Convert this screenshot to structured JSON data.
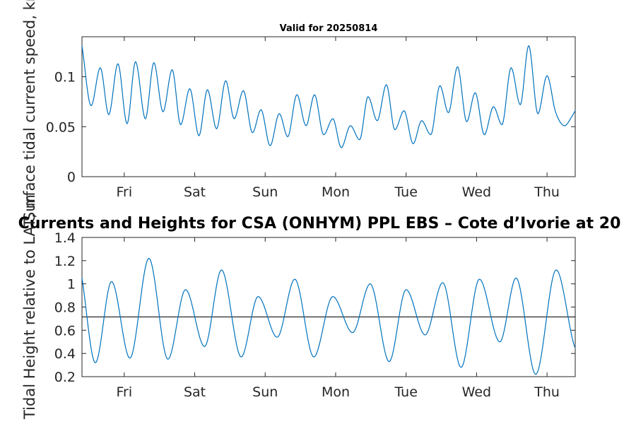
{
  "chart_data": [
    {
      "type": "line",
      "title": "Valid for 20250814",
      "ylabel": "Surface tidal current speed, kn",
      "xlim": [
        0,
        7
      ],
      "ylim": [
        0,
        0.14
      ],
      "yticks": [
        0,
        0.05,
        0.1
      ],
      "ytick_labels": [
        "0",
        "0.05",
        "0.1"
      ],
      "xticks": [
        0.6,
        1.6,
        2.6,
        3.6,
        4.6,
        5.6,
        6.6
      ],
      "xtick_labels": [
        "Fri",
        "Sat",
        "Sun",
        "Mon",
        "Tue",
        "Wed",
        "Thu"
      ],
      "grid": false,
      "color": "#0072BD",
      "x": [
        0.0,
        0.13,
        0.26,
        0.38,
        0.51,
        0.64,
        0.76,
        0.9,
        1.02,
        1.15,
        1.28,
        1.4,
        1.53,
        1.66,
        1.78,
        1.91,
        2.04,
        2.16,
        2.29,
        2.42,
        2.54,
        2.67,
        2.8,
        2.92,
        3.05,
        3.18,
        3.3,
        3.43,
        3.56,
        3.68,
        3.81,
        3.94,
        4.06,
        4.19,
        4.32,
        4.44,
        4.57,
        4.7,
        4.82,
        4.95,
        5.08,
        5.2,
        5.33,
        5.46,
        5.58,
        5.71,
        5.84,
        5.96,
        6.09,
        6.22,
        6.34,
        6.47,
        6.6,
        6.72,
        6.85,
        6.95,
        7.0
      ],
      "values": [
        0.131,
        0.071,
        0.109,
        0.062,
        0.113,
        0.053,
        0.115,
        0.058,
        0.114,
        0.065,
        0.107,
        0.052,
        0.088,
        0.041,
        0.087,
        0.048,
        0.096,
        0.058,
        0.086,
        0.044,
        0.067,
        0.031,
        0.063,
        0.04,
        0.082,
        0.051,
        0.082,
        0.042,
        0.058,
        0.029,
        0.051,
        0.037,
        0.08,
        0.056,
        0.092,
        0.047,
        0.066,
        0.033,
        0.056,
        0.042,
        0.091,
        0.064,
        0.11,
        0.055,
        0.084,
        0.042,
        0.07,
        0.052,
        0.109,
        0.072,
        0.131,
        0.063,
        0.101,
        0.065,
        0.051,
        0.06,
        0.066
      ]
    },
    {
      "type": "line",
      "title": "Currents and Heights for CSA (ONHYM) PPL EBS  – Cote d’Ivorie at 20",
      "ylabel": "Tidal Height relative to LAT, m",
      "xlim": [
        0,
        7
      ],
      "ylim": [
        0.2,
        1.4
      ],
      "yticks": [
        0.2,
        0.4,
        0.6,
        0.8,
        1.0,
        1.2,
        1.4
      ],
      "ytick_labels": [
        "0.2",
        "0.4",
        "0.6",
        "0.8",
        "1",
        "1.2",
        "1.4"
      ],
      "xticks": [
        0.6,
        1.6,
        2.6,
        3.6,
        4.6,
        5.6,
        6.6
      ],
      "xtick_labels": [
        "Fri",
        "Sat",
        "Sun",
        "Mon",
        "Tue",
        "Wed",
        "Thu"
      ],
      "grid": false,
      "color": "#0072BD",
      "mean_level": 0.715,
      "x": [
        0.0,
        0.19,
        0.42,
        0.68,
        0.95,
        1.22,
        1.47,
        1.74,
        1.98,
        2.26,
        2.5,
        2.77,
        3.02,
        3.29,
        3.56,
        3.84,
        4.09,
        4.36,
        4.6,
        4.87,
        5.12,
        5.38,
        5.64,
        5.93,
        6.16,
        6.44,
        6.73,
        6.99,
        7.0
      ],
      "values": [
        1.05,
        0.32,
        1.02,
        0.36,
        1.22,
        0.35,
        0.95,
        0.46,
        1.12,
        0.37,
        0.89,
        0.54,
        1.04,
        0.37,
        0.89,
        0.58,
        1.0,
        0.33,
        0.95,
        0.56,
        1.01,
        0.28,
        1.04,
        0.5,
        1.05,
        0.22,
        1.12,
        0.46,
        0.45
      ]
    }
  ]
}
